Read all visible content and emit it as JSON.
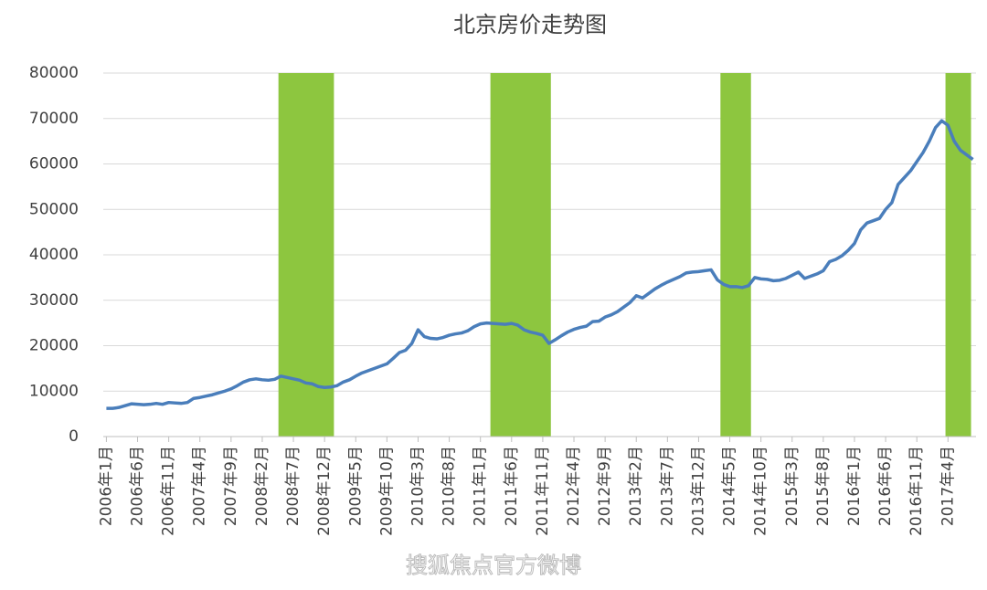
{
  "chart_data": {
    "type": "line",
    "title": "北京房价走势图",
    "watermark": "搜狐焦点官方微博",
    "categories": [
      "2006年1月",
      null,
      null,
      null,
      null,
      "2006年6月",
      null,
      null,
      null,
      null,
      "2006年11月",
      null,
      null,
      null,
      null,
      "2007年4月",
      null,
      null,
      null,
      null,
      "2007年9月",
      null,
      null,
      null,
      null,
      "2008年2月",
      null,
      null,
      null,
      null,
      "2008年7月",
      null,
      null,
      null,
      null,
      "2008年12月",
      null,
      null,
      null,
      null,
      "2009年5月",
      null,
      null,
      null,
      null,
      "2009年10月",
      null,
      null,
      null,
      null,
      "2010年3月",
      null,
      null,
      null,
      null,
      "2010年8月",
      null,
      null,
      null,
      null,
      "2011年1月",
      null,
      null,
      null,
      null,
      "2011年6月",
      null,
      null,
      null,
      null,
      "2011年11月",
      null,
      null,
      null,
      null,
      "2012年4月",
      null,
      null,
      null,
      null,
      "2012年9月",
      null,
      null,
      null,
      null,
      "2013年2月",
      null,
      null,
      null,
      null,
      "2013年7月",
      null,
      null,
      null,
      null,
      "2013年12月",
      null,
      null,
      null,
      null,
      "2014年5月",
      null,
      null,
      null,
      null,
      "2014年10月",
      null,
      null,
      null,
      null,
      "2015年3月",
      null,
      null,
      null,
      null,
      "2015年8月",
      null,
      null,
      null,
      null,
      "2016年1月",
      null,
      null,
      null,
      null,
      "2016年6月",
      null,
      null,
      null,
      null,
      "2016年11月",
      null,
      null,
      null,
      null,
      "2017年4月",
      null,
      null,
      null,
      null
    ],
    "values": [
      6200,
      6200,
      6400,
      6800,
      7200,
      7100,
      7000,
      7100,
      7300,
      7100,
      7500,
      7400,
      7300,
      7500,
      8400,
      8600,
      8900,
      9200,
      9600,
      10000,
      10500,
      11200,
      12000,
      12500,
      12700,
      12500,
      12400,
      12600,
      13300,
      13000,
      12700,
      12400,
      11800,
      11600,
      11000,
      10800,
      10900,
      11200,
      12000,
      12500,
      13300,
      14000,
      14500,
      15000,
      15500,
      16000,
      17200,
      18500,
      19000,
      20500,
      23500,
      22000,
      21600,
      21500,
      21800,
      22300,
      22600,
      22800,
      23300,
      24200,
      24800,
      25000,
      24900,
      24800,
      24700,
      24900,
      24500,
      23500,
      23000,
      22700,
      22300,
      20500,
      21300,
      22200,
      23000,
      23600,
      24000,
      24300,
      25300,
      25400,
      26300,
      26800,
      27500,
      28500,
      29500,
      31000,
      30500,
      31500,
      32500,
      33300,
      34000,
      34600,
      35200,
      36000,
      36200,
      36300,
      36500,
      36700,
      34500,
      33500,
      33000,
      33000,
      32800,
      33200,
      35000,
      34700,
      34600,
      34300,
      34400,
      34800,
      35500,
      36200,
      34800,
      35300,
      35800,
      36500,
      38500,
      39000,
      39800,
      41000,
      42500,
      45500,
      47000,
      47500,
      48000,
      50000,
      51500,
      55500,
      57000,
      58500,
      60500,
      62500,
      65000,
      68000,
      69500,
      68500,
      65000,
      63000,
      62000,
      61000
    ],
    "color": "#4a7ebb",
    "highlight_spans": [
      [
        27.6,
        36.5
      ],
      [
        61.6,
        71.3
      ],
      [
        98.5,
        103.4
      ],
      [
        134.6,
        138.7
      ]
    ],
    "highlight_color": "#8dc63f",
    "ylim": [
      0,
      80000
    ],
    "yticks": [
      0,
      10000,
      20000,
      30000,
      40000,
      50000,
      60000,
      70000,
      80000
    ],
    "grid": true
  }
}
